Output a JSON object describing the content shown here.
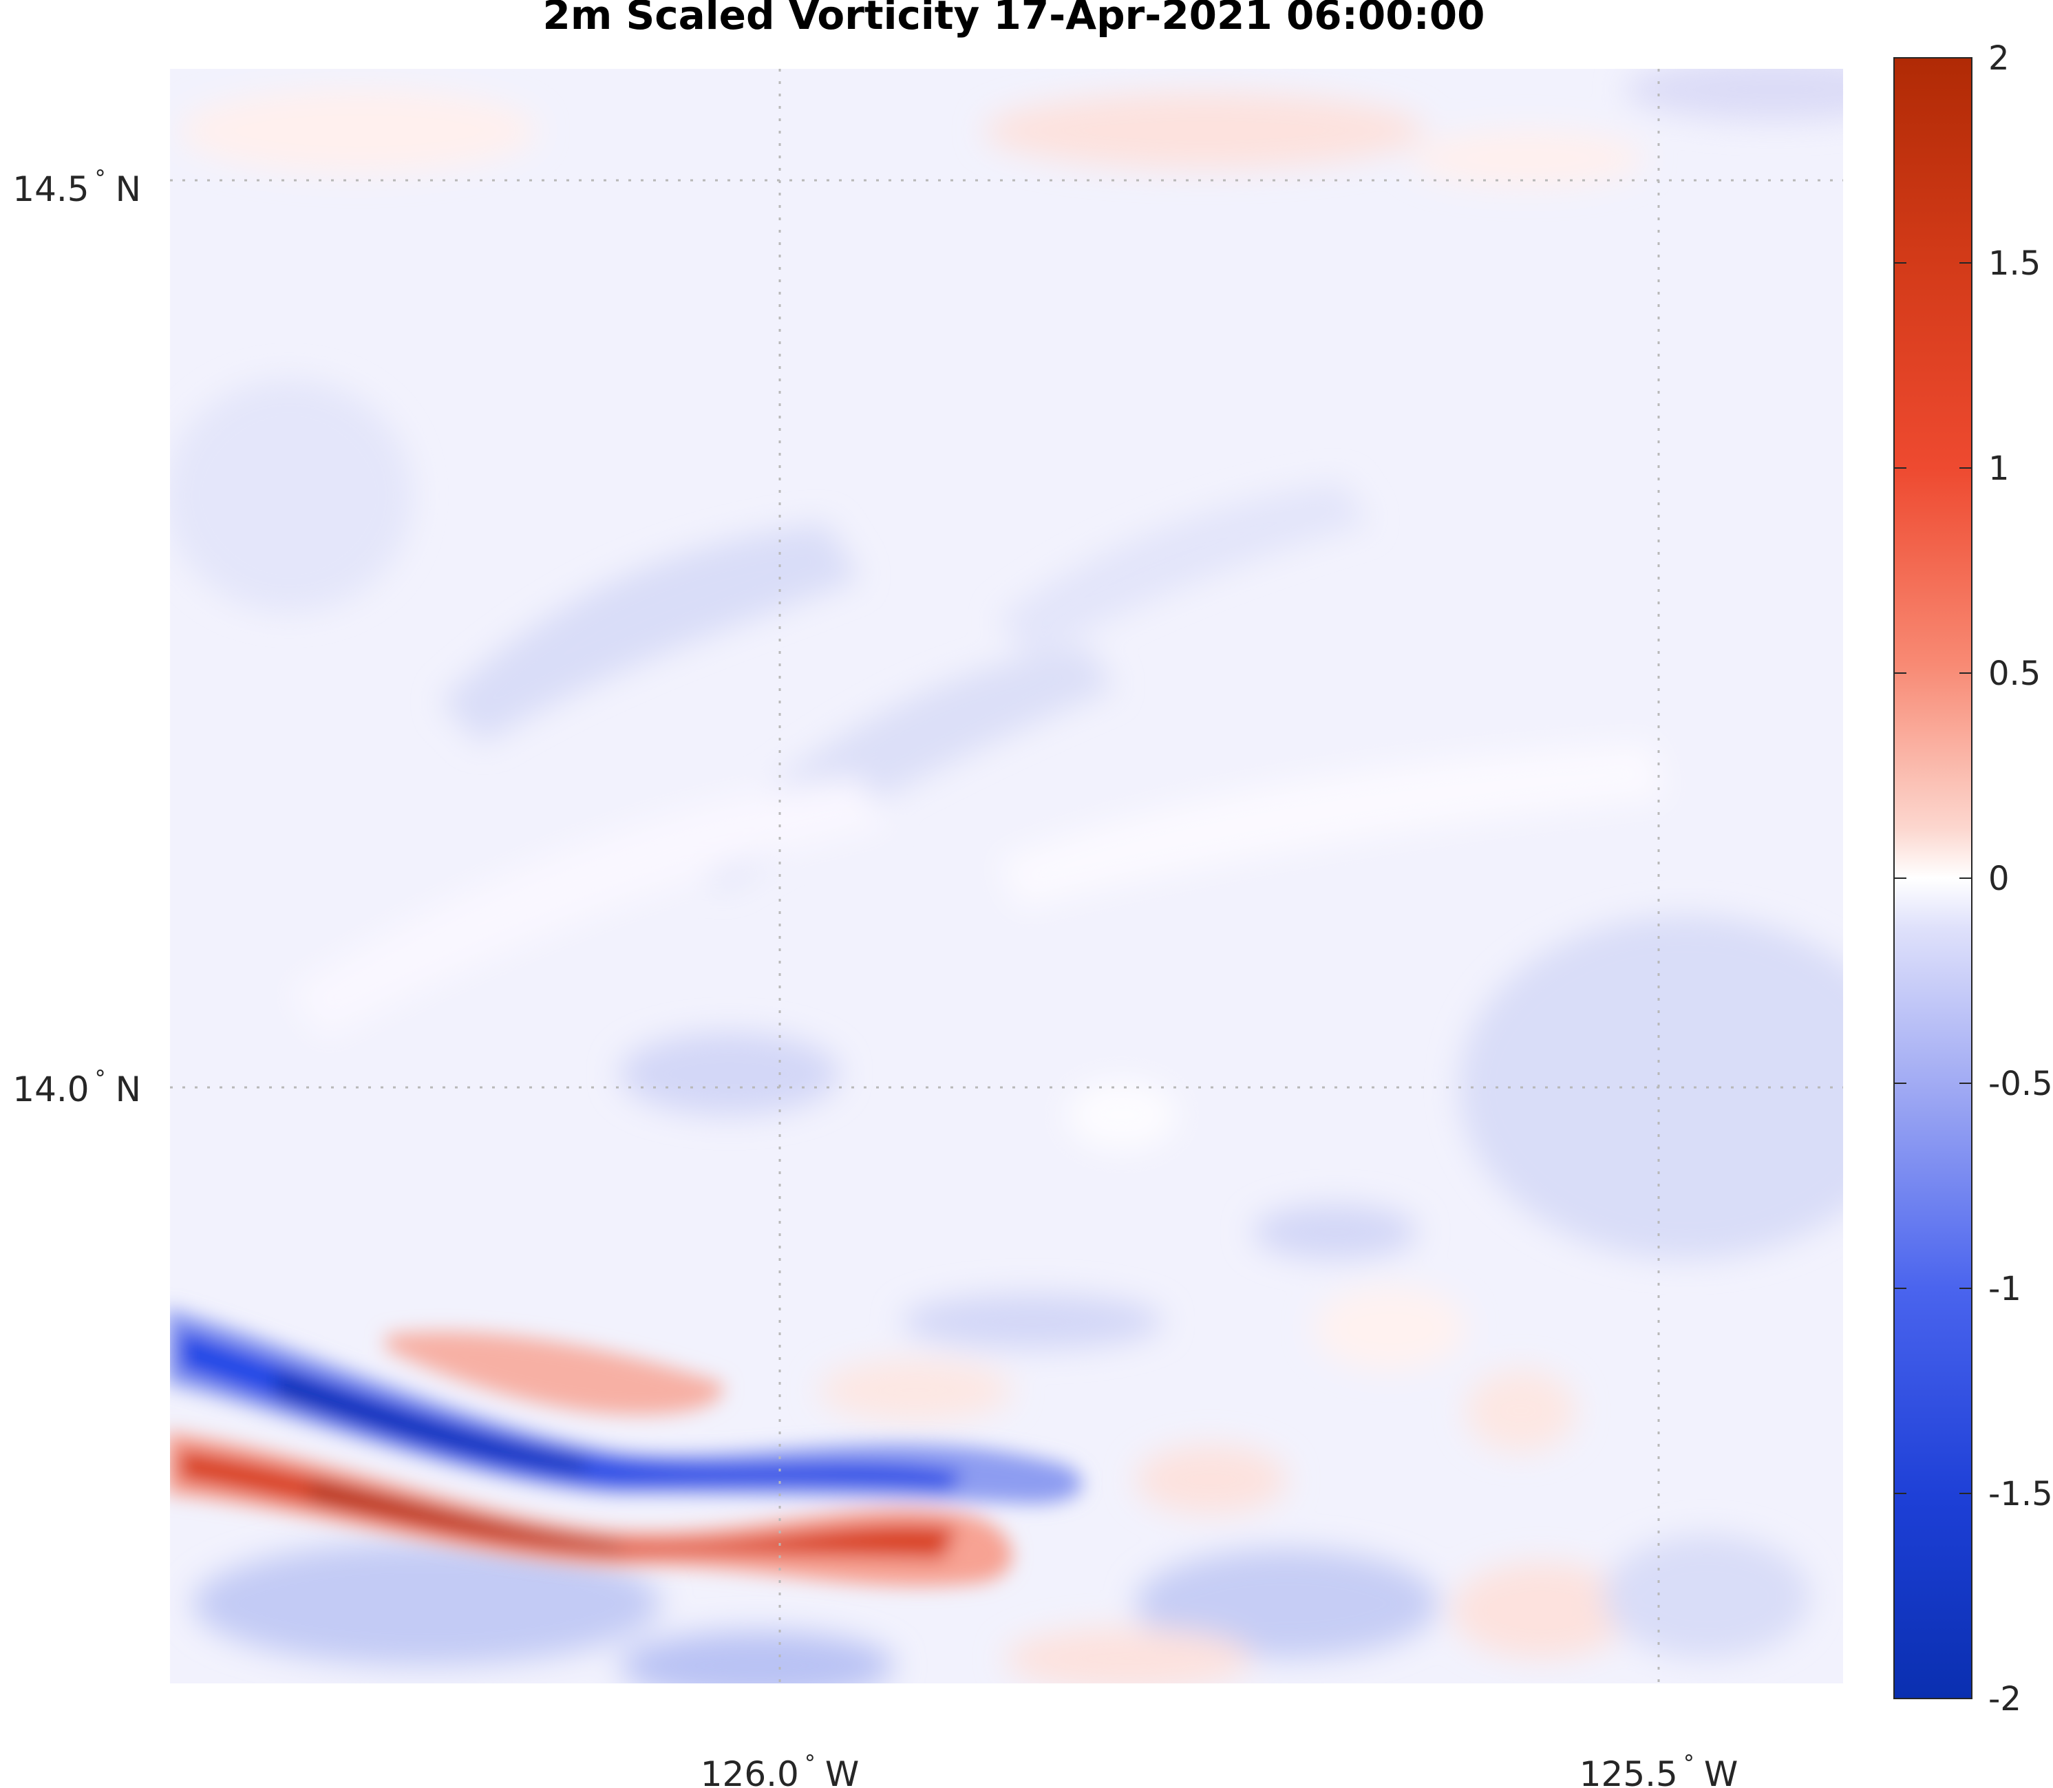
{
  "chart_data": {
    "type": "heatmap",
    "title": "2m Scaled Vorticity  17-Apr-2021 06:00:00",
    "xlabel": "",
    "ylabel": "",
    "x_ticks": [
      {
        "value": -126.0,
        "label": "126.0",
        "deg": "°",
        "hemi": "W"
      },
      {
        "value": -125.5,
        "label": "125.5",
        "deg": "°",
        "hemi": "W"
      }
    ],
    "y_ticks": [
      {
        "value": 14.5,
        "label": "14.5",
        "deg": "°",
        "hemi": "N"
      },
      {
        "value": 14.0,
        "label": "14.0",
        "deg": "°",
        "hemi": "N"
      }
    ],
    "xlim": [
      -126.35,
      -125.4
    ],
    "ylim": [
      13.68,
      14.56
    ],
    "grid": true,
    "colorbar": {
      "range": [
        -2,
        2
      ],
      "ticks": [
        2,
        1.5,
        1,
        0.5,
        0,
        -0.5,
        -1,
        -1.5,
        -2
      ],
      "tick_labels": [
        "2",
        "1.5",
        "1",
        "0.5",
        "0",
        "-0.5",
        "-1",
        "-1.5",
        "-2"
      ],
      "colormap": "blue-white-red",
      "color_min": "#0a2fb0",
      "color_zero": "#ffffff",
      "color_max": "#b02a05"
    },
    "features": [
      {
        "name": "red band",
        "value": 1.8,
        "lon": [
          -126.35,
          -126.2,
          -126.0,
          -125.85
        ],
        "lat": [
          13.78,
          13.77,
          13.74,
          13.75
        ]
      },
      {
        "name": "blue band",
        "value": -1.8,
        "lon": [
          -126.35,
          -126.15,
          -126.0,
          -125.85
        ],
        "lat": [
          13.84,
          13.8,
          13.8,
          13.79
        ]
      }
    ]
  }
}
